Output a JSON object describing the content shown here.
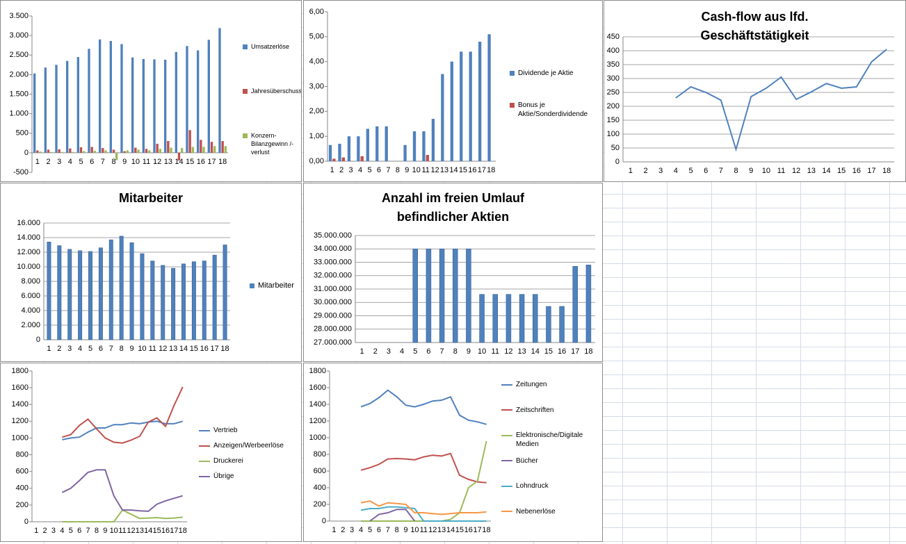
{
  "chart_data": [
    {
      "type": "bar",
      "categories": [
        "1",
        "2",
        "3",
        "4",
        "5",
        "6",
        "7",
        "8",
        "9",
        "10",
        "11",
        "12",
        "13",
        "14",
        "15",
        "16",
        "17",
        "18"
      ],
      "series": [
        {
          "name": "Umsatzerlöse",
          "color": "#4f81bd",
          "values": [
            2030,
            2180,
            2250,
            2350,
            2450,
            2660,
            2900,
            2860,
            2780,
            2440,
            2400,
            2390,
            2380,
            2580,
            2730,
            2620,
            2890,
            3190
          ]
        },
        {
          "name": "Jahresüberschuss",
          "color": "#c0504d",
          "values": [
            60,
            80,
            90,
            110,
            140,
            150,
            120,
            80,
            40,
            130,
            100,
            230,
            300,
            -200,
            580,
            330,
            280,
            300
          ]
        },
        {
          "name": "Konzern-Bilanzgewinn /-verlust",
          "color": "#9bbb59",
          "values": [
            30,
            20,
            20,
            20,
            40,
            50,
            60,
            -190,
            60,
            80,
            60,
            100,
            130,
            120,
            150,
            150,
            170,
            170
          ]
        }
      ],
      "ylim": [
        -500,
        3500
      ],
      "yticks": [
        -500,
        0,
        500,
        {
          "value": 1000,
          "label": "1.000"
        },
        {
          "value": 1500,
          "label": "1.500"
        },
        {
          "value": 2000,
          "label": "2.000"
        },
        {
          "value": 2500,
          "label": "2.500"
        },
        {
          "value": 3000,
          "label": "3.000"
        },
        {
          "value": 3500,
          "label": "3.500"
        }
      ],
      "grid": false,
      "legend": "right"
    },
    {
      "type": "bar",
      "categories": [
        "1",
        "2",
        "3",
        "4",
        "5",
        "6",
        "7",
        "8",
        "9",
        "10",
        "11",
        "12",
        "13",
        "14",
        "15",
        "16",
        "17",
        "18"
      ],
      "series": [
        {
          "name": "Dividende je Aktie",
          "color": "#4f81bd",
          "values": [
            0.65,
            0.7,
            1.0,
            1.0,
            1.3,
            1.4,
            1.4,
            null,
            0.65,
            1.2,
            1.2,
            1.7,
            3.5,
            4.0,
            4.4,
            4.4,
            4.8,
            5.1
          ]
        },
        {
          "name": "Bonus je Aktie/Sonderdividende",
          "color": "#c0504d",
          "values": [
            0.1,
            0.15,
            null,
            0.2,
            null,
            null,
            null,
            null,
            null,
            null,
            0.25,
            null,
            null,
            null,
            null,
            null,
            null,
            null
          ]
        }
      ],
      "ylim": [
        0,
        6
      ],
      "yticks": [
        {
          "value": 0,
          "label": "0,00"
        },
        {
          "value": 1,
          "label": "1,00"
        },
        {
          "value": 2,
          "label": "2,00"
        },
        {
          "value": 3,
          "label": "3,00"
        },
        {
          "value": 4,
          "label": "4,00"
        },
        {
          "value": 5,
          "label": "5,00"
        },
        {
          "value": 6,
          "label": "6,00"
        }
      ],
      "grid": false,
      "legend": "right"
    },
    {
      "type": "line",
      "title": "Cash-flow aus lfd. Geschäftstätigkeit",
      "categories": [
        "1",
        "2",
        "3",
        "4",
        "5",
        "6",
        "7",
        "8",
        "9",
        "10",
        "11",
        "12",
        "13",
        "14",
        "15",
        "16",
        "17",
        "18"
      ],
      "values": [
        null,
        null,
        null,
        230,
        270,
        250,
        222,
        45,
        235,
        265,
        305,
        225,
        252,
        282,
        265,
        270,
        360,
        405
      ],
      "color": "#4f81bd",
      "ylim": [
        0,
        450
      ],
      "yticks": [
        0,
        50,
        100,
        150,
        200,
        250,
        300,
        350,
        400,
        450
      ],
      "grid": true
    },
    {
      "type": "bar",
      "title": "Mitarbeiter",
      "categories": [
        "1",
        "2",
        "3",
        "4",
        "5",
        "6",
        "7",
        "8",
        "9",
        "10",
        "11",
        "12",
        "13",
        "14",
        "15",
        "16",
        "17",
        "18"
      ],
      "series": [
        {
          "name": "Mitarbeiter",
          "color": "#4f81bd",
          "values": [
            13400,
            12900,
            12400,
            12200,
            12100,
            12600,
            13700,
            14200,
            13300,
            11800,
            10800,
            10200,
            9800,
            10400,
            10700,
            10800,
            11600,
            13000
          ]
        }
      ],
      "ylim": [
        0,
        16000
      ],
      "yticks": [
        0,
        {
          "value": 2000,
          "label": "2.000"
        },
        {
          "value": 4000,
          "label": "4.000"
        },
        {
          "value": 6000,
          "label": "6.000"
        },
        {
          "value": 8000,
          "label": "8.000"
        },
        {
          "value": 10000,
          "label": "10.000"
        },
        {
          "value": 12000,
          "label": "12.000"
        },
        {
          "value": 14000,
          "label": "14.000"
        },
        {
          "value": 16000,
          "label": "16.000"
        }
      ],
      "grid": true,
      "legend": "right"
    },
    {
      "type": "bar",
      "title": "Anzahl im freien Umlauf befindlicher Aktien",
      "categories": [
        "1",
        "2",
        "3",
        "4",
        "5",
        "6",
        "7",
        "8",
        "9",
        "10",
        "11",
        "12",
        "13",
        "14",
        "15",
        "16",
        "17",
        "18"
      ],
      "values": [
        null,
        null,
        null,
        null,
        34000000,
        34000000,
        34000000,
        34000000,
        34000000,
        30600000,
        30600000,
        30600000,
        30600000,
        30600000,
        29700000,
        29700000,
        32700000,
        32800000
      ],
      "color": "#4f81bd",
      "ylim": [
        27000000,
        35000000
      ],
      "yticks": [
        {
          "value": 27000000,
          "label": "27.000.000"
        },
        {
          "value": 28000000,
          "label": "28.000.000"
        },
        {
          "value": 29000000,
          "label": "29.000.000"
        },
        {
          "value": 30000000,
          "label": "30.000.000"
        },
        {
          "value": 31000000,
          "label": "31.000.000"
        },
        {
          "value": 32000000,
          "label": "32.000.000"
        },
        {
          "value": 33000000,
          "label": "33.000.000"
        },
        {
          "value": 34000000,
          "label": "34.000.000"
        },
        {
          "value": 35000000,
          "label": "35.000.000"
        }
      ],
      "grid": true
    },
    {
      "type": "line",
      "categories": [
        "1",
        "2",
        "3",
        "4",
        "5",
        "6",
        "7",
        "8",
        "9",
        "10",
        "11",
        "12",
        "13",
        "14",
        "15",
        "16",
        "17",
        "18"
      ],
      "series": [
        {
          "name": "Vertrieb",
          "color": "#4f81bd",
          "values": [
            null,
            null,
            null,
            980,
            1000,
            1010,
            1070,
            1120,
            1120,
            1160,
            1160,
            1180,
            1170,
            1190,
            1200,
            1170,
            1170,
            1200
          ]
        },
        {
          "name": "Anzeigen/Werbeerlöse",
          "color": "#c0504d",
          "values": [
            null,
            null,
            null,
            1010,
            1040,
            1150,
            1225,
            1110,
            1000,
            950,
            940,
            975,
            1020,
            1190,
            1240,
            1140,
            1390,
            1610
          ]
        },
        {
          "name": "Druckerei",
          "color": "#9bbb59",
          "values": [
            null,
            null,
            null,
            0,
            0,
            0,
            0,
            0,
            0,
            0,
            140,
            90,
            40,
            45,
            50,
            40,
            45,
            55
          ]
        },
        {
          "name": "Übrige",
          "color": "#8064a2",
          "values": [
            null,
            null,
            null,
            350,
            400,
            490,
            590,
            620,
            620,
            310,
            140,
            140,
            130,
            125,
            210,
            250,
            280,
            310
          ]
        }
      ],
      "ylim": [
        0,
        1800
      ],
      "yticks": [
        0,
        200,
        400,
        600,
        800,
        1000,
        1200,
        1400,
        1600,
        1800
      ],
      "grid": false,
      "legend": "right"
    },
    {
      "type": "line",
      "categories": [
        "1",
        "2",
        "3",
        "4",
        "5",
        "6",
        "7",
        "8",
        "9",
        "10",
        "11",
        "12",
        "13",
        "14",
        "15",
        "16",
        "17",
        "18"
      ],
      "series": [
        {
          "name": "Zeitungen",
          "color": "#4f81bd",
          "values": [
            null,
            null,
            null,
            1370,
            1410,
            1480,
            1570,
            1490,
            1390,
            1370,
            1400,
            1440,
            1450,
            1490,
            1270,
            1210,
            1190,
            1160
          ]
        },
        {
          "name": "Zeitschriften",
          "color": "#c0504d",
          "values": [
            null,
            null,
            null,
            610,
            640,
            680,
            745,
            750,
            745,
            735,
            770,
            790,
            780,
            810,
            550,
            500,
            470,
            460
          ]
        },
        {
          "name": "Elektronische/Digitale Medien",
          "color": "#9bbb59",
          "values": [
            null,
            null,
            null,
            0,
            0,
            0,
            0,
            0,
            0,
            0,
            0,
            0,
            0,
            20,
            100,
            400,
            480,
            960
          ]
        },
        {
          "name": "Bücher",
          "color": "#8064a2",
          "values": [
            null,
            null,
            null,
            null,
            0,
            80,
            100,
            140,
            140,
            0,
            null,
            null,
            null,
            null,
            null,
            null,
            null,
            null
          ]
        },
        {
          "name": "Lohndruck",
          "color": "#4bacc6",
          "values": [
            null,
            null,
            null,
            130,
            150,
            150,
            170,
            170,
            160,
            150,
            0,
            0,
            0,
            0,
            0,
            0,
            0,
            0
          ]
        },
        {
          "name": "Nebenerlöse",
          "color": "#f79646",
          "values": [
            null,
            null,
            null,
            220,
            240,
            180,
            220,
            210,
            200,
            100,
            100,
            90,
            80,
            90,
            100,
            100,
            100,
            110
          ]
        }
      ],
      "ylim": [
        0,
        1800
      ],
      "yticks": [
        0,
        200,
        400,
        600,
        800,
        1000,
        1200,
        1400,
        1600,
        1800
      ],
      "grid": false,
      "legend": "right"
    }
  ]
}
